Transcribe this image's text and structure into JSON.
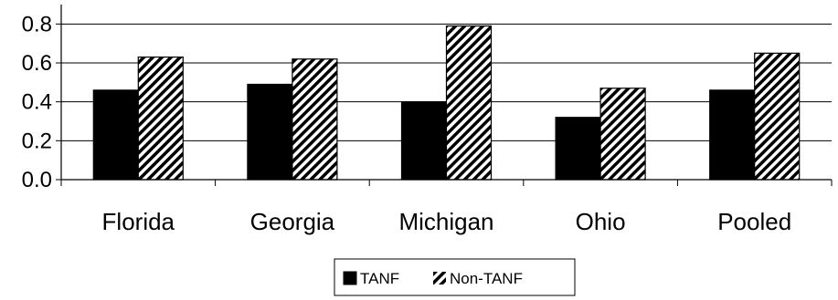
{
  "chart_data": {
    "type": "bar",
    "categories": [
      "Florida",
      "Georgia",
      "Michigan",
      "Ohio",
      "Pooled"
    ],
    "series": [
      {
        "name": "TANF",
        "values": [
          0.46,
          0.49,
          0.4,
          0.32,
          0.46
        ],
        "color": "#000000",
        "pattern": "solid"
      },
      {
        "name": "Non-TANF",
        "values": [
          0.63,
          0.62,
          0.79,
          0.47,
          0.65
        ],
        "color": "#000000",
        "pattern": "diagonal-hatch"
      }
    ],
    "yticks": [
      "0.0",
      "0.2",
      "0.4",
      "0.6",
      "0.8"
    ],
    "ylim": [
      0,
      0.9
    ],
    "grid": "horizontal",
    "legend_position": "bottom-center",
    "title": "",
    "xlabel": "",
    "ylabel": ""
  }
}
